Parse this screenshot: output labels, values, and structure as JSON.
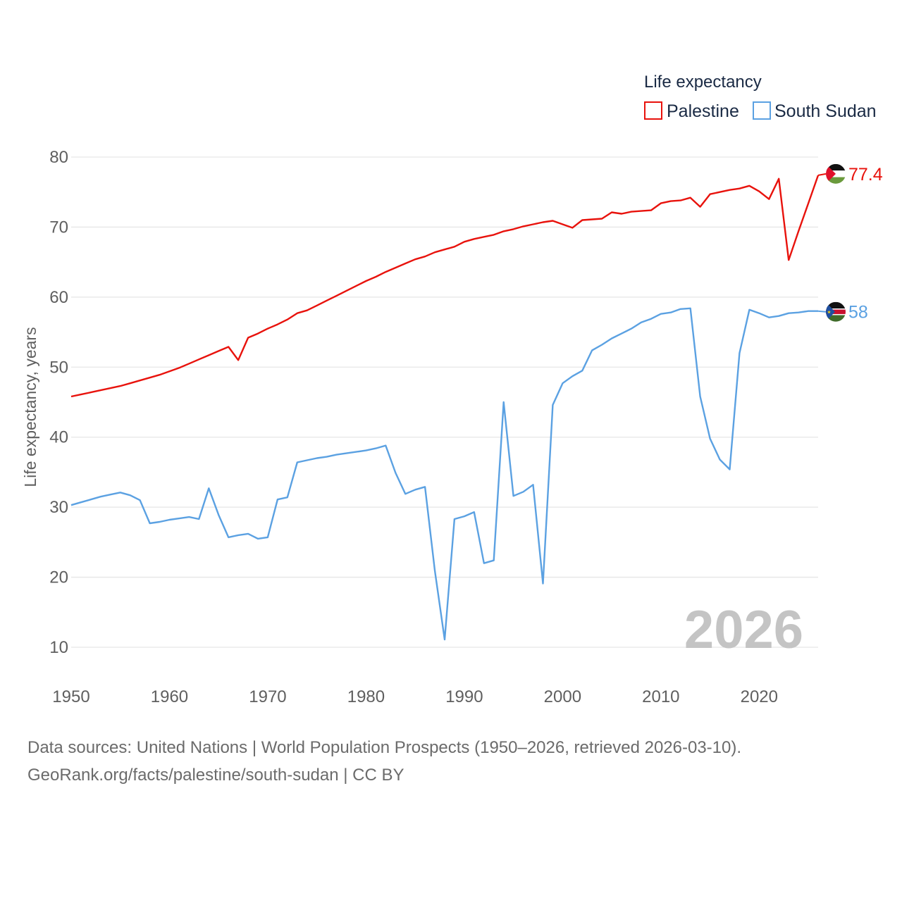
{
  "chart_data": {
    "type": "line",
    "title": "Life expectancy",
    "xlabel": "",
    "ylabel": "Life expectancy, years",
    "xlim": [
      1950,
      2026
    ],
    "ylim": [
      10,
      80
    ],
    "x_ticks": [
      1950,
      1960,
      1970,
      1980,
      1990,
      2000,
      2010,
      2020
    ],
    "y_ticks": [
      10,
      20,
      30,
      40,
      50,
      60,
      70,
      80
    ],
    "current_year": "2026",
    "legend_position": "top-right",
    "x": [
      1950,
      1951,
      1952,
      1953,
      1954,
      1955,
      1956,
      1957,
      1958,
      1959,
      1960,
      1961,
      1962,
      1963,
      1964,
      1965,
      1966,
      1967,
      1968,
      1969,
      1970,
      1971,
      1972,
      1973,
      1974,
      1975,
      1976,
      1977,
      1978,
      1979,
      1980,
      1981,
      1982,
      1983,
      1984,
      1985,
      1986,
      1987,
      1988,
      1989,
      1990,
      1991,
      1992,
      1993,
      1994,
      1995,
      1996,
      1997,
      1998,
      1999,
      2000,
      2001,
      2002,
      2003,
      2004,
      2005,
      2006,
      2007,
      2008,
      2009,
      2010,
      2011,
      2012,
      2013,
      2014,
      2015,
      2016,
      2017,
      2018,
      2019,
      2020,
      2021,
      2022,
      2023,
      2024,
      2025,
      2026
    ],
    "series": [
      {
        "name": "Palestine",
        "color": "#e8120c",
        "end_label": "77.4",
        "flag": "palestine-flag-icon",
        "values": [
          45.8,
          46.1,
          46.4,
          46.7,
          47.0,
          47.3,
          47.7,
          48.1,
          48.5,
          48.9,
          49.4,
          49.9,
          50.5,
          51.1,
          51.7,
          52.3,
          52.9,
          51.0,
          54.2,
          54.8,
          55.5,
          56.1,
          56.8,
          57.7,
          58.1,
          58.8,
          59.5,
          60.2,
          60.9,
          61.6,
          62.3,
          62.9,
          63.6,
          64.2,
          64.8,
          65.4,
          65.8,
          66.4,
          66.8,
          67.2,
          67.9,
          68.3,
          68.6,
          68.9,
          69.4,
          69.7,
          70.1,
          70.4,
          70.7,
          70.9,
          70.4,
          69.9,
          71.0,
          71.1,
          71.2,
          72.1,
          71.9,
          72.2,
          72.3,
          72.4,
          73.4,
          73.7,
          73.8,
          74.2,
          72.9,
          74.7,
          75.0,
          75.3,
          75.5,
          75.9,
          75.1,
          74.0,
          76.9,
          65.3,
          69.4,
          73.4,
          77.4
        ]
      },
      {
        "name": "South Sudan",
        "color": "#5ba1e2",
        "end_label": "58",
        "flag": "south-sudan-flag-icon",
        "values": [
          30.3,
          30.7,
          31.1,
          31.5,
          31.8,
          32.1,
          31.7,
          31.0,
          27.7,
          27.9,
          28.2,
          28.4,
          28.6,
          28.3,
          32.7,
          28.9,
          25.7,
          26.0,
          26.2,
          25.5,
          25.7,
          31.1,
          31.4,
          36.4,
          36.7,
          37.0,
          37.2,
          37.5,
          37.7,
          37.9,
          38.1,
          38.4,
          38.8,
          34.9,
          31.9,
          32.5,
          32.9,
          20.9,
          11.1,
          28.3,
          28.7,
          29.3,
          22.0,
          22.4,
          45.0,
          31.6,
          32.2,
          33.2,
          19.1,
          44.6,
          47.7,
          48.7,
          49.5,
          52.4,
          53.2,
          54.1,
          54.8,
          55.5,
          56.4,
          56.9,
          57.6,
          57.8,
          58.3,
          58.4,
          45.8,
          39.8,
          36.8,
          35.4,
          52.0,
          58.2,
          57.7,
          57.1,
          57.3,
          57.7,
          57.8,
          58.0,
          58.0
        ]
      }
    ]
  },
  "footer": {
    "source_line": "Data sources: United Nations | World Population Prospects (1950–2026, retrieved 2026-03-10).",
    "attribution_line": "GeoRank.org/facts/palestine/south-sudan | CC BY"
  }
}
